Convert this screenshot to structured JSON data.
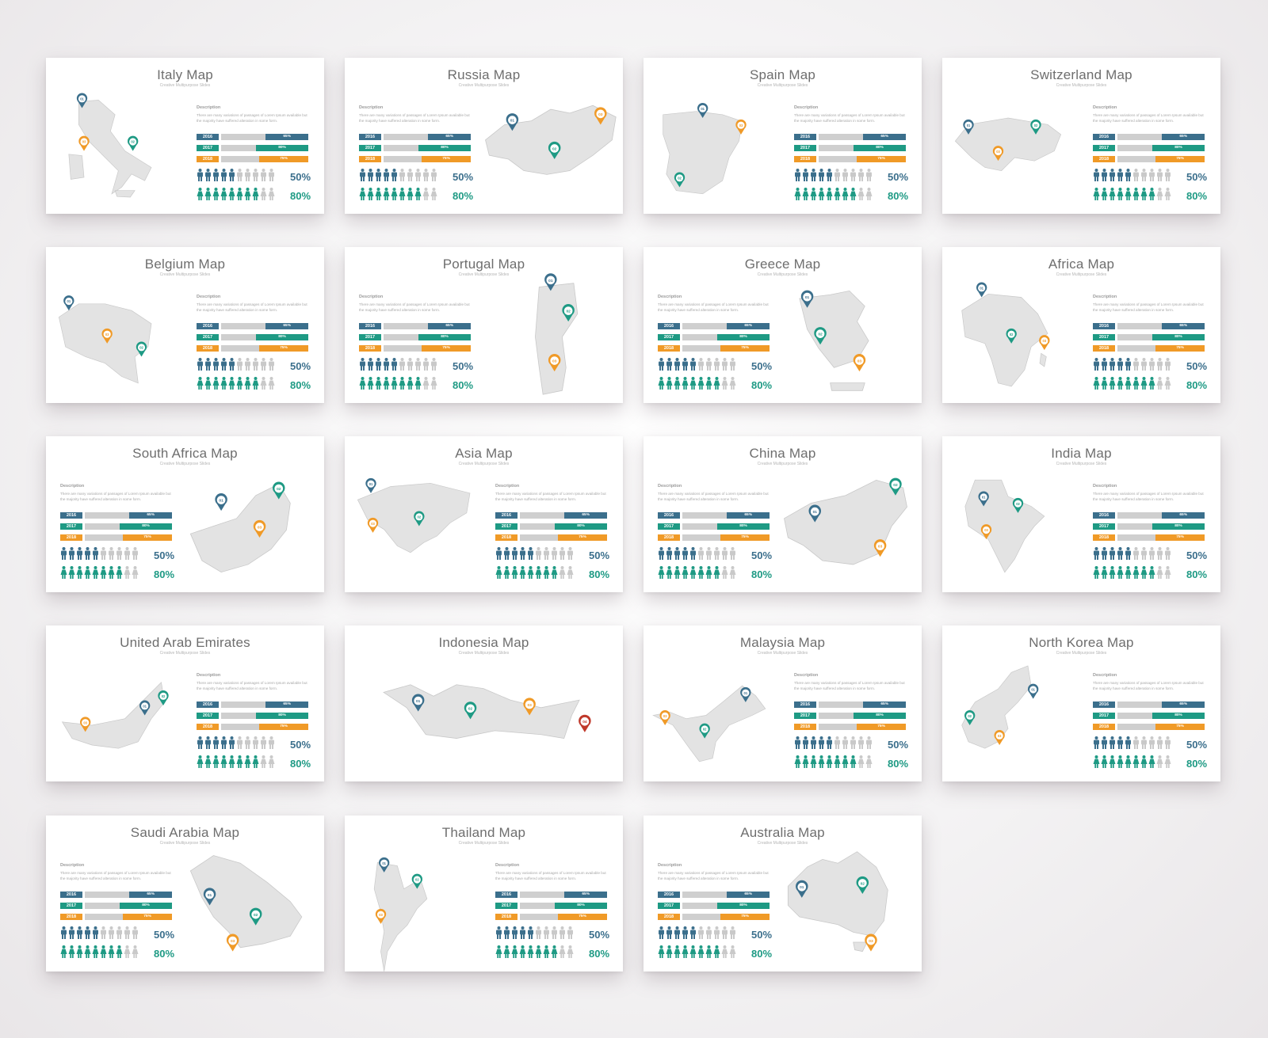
{
  "subtitle": "Creative Multipurpose Slides",
  "description_title": "Description",
  "description_text": "There are many variations of passages of Lorem Ipsum available but the majority have suffered alteration in some form.",
  "bars": [
    {
      "year": "2016",
      "label": "65%",
      "value": 0.65,
      "color": "#3b6f8c"
    },
    {
      "year": "2017",
      "label": "80%",
      "value": 0.8,
      "color": "#1e9a84"
    },
    {
      "year": "2018",
      "label": "75%",
      "value": 0.75,
      "color": "#f09a27"
    }
  ],
  "people_rows": [
    {
      "figure": "man-icon",
      "filled": 5,
      "total": 10,
      "label": "50%",
      "color": "#3b6f8c"
    },
    {
      "figure": "woman-icon",
      "filled": 8,
      "total": 10,
      "label": "80%",
      "color": "#1e9a84"
    }
  ],
  "colors": {
    "blue": "#3b6f8c",
    "green": "#1e9a84",
    "orange": "#f09a27",
    "red": "#c0392b",
    "map_fill": "#e3e3e3",
    "map_stroke": "#ffffff",
    "track": "#cfcfcf"
  },
  "slides": [
    {
      "title": "Italy Map",
      "layout": "map-left",
      "map": "italy-map"
    },
    {
      "title": "Russia Map",
      "layout": "map-right",
      "map": "russia-map"
    },
    {
      "title": "Spain Map",
      "layout": "map-left",
      "map": "spain-map"
    },
    {
      "title": "Switzerland Map",
      "layout": "map-left",
      "map": "switzerland-map"
    },
    {
      "title": "Belgium Map",
      "layout": "map-left",
      "map": "belgium-map"
    },
    {
      "title": "Portugal Map",
      "layout": "map-right",
      "map": "portugal-map"
    },
    {
      "title": "Greece Map",
      "layout": "map-right",
      "map": "greece-map"
    },
    {
      "title": "Africa Map",
      "layout": "map-left",
      "map": "africa-map"
    },
    {
      "title": "South Africa Map",
      "layout": "map-right",
      "map": "south-africa-map"
    },
    {
      "title": "Asia Map",
      "layout": "map-left",
      "map": "asia-map"
    },
    {
      "title": "China Map",
      "layout": "map-right",
      "map": "china-map"
    },
    {
      "title": "India Map",
      "layout": "map-left",
      "map": "india-map"
    },
    {
      "title": "United Arab Emirates",
      "layout": "map-left",
      "map": "uae-map"
    },
    {
      "title": "Indonesia Map",
      "layout": "map-only",
      "map": "indonesia-map"
    },
    {
      "title": "Malaysia Map",
      "layout": "map-left",
      "map": "malaysia-map"
    },
    {
      "title": "North Korea Map",
      "layout": "map-left",
      "map": "north-korea-map"
    },
    {
      "title": "Saudi Arabia Map",
      "layout": "map-right",
      "map": "saudi-arabia-map"
    },
    {
      "title": "Thailand Map",
      "layout": "map-left",
      "map": "thailand-map"
    },
    {
      "title": "Australia Map",
      "layout": "map-right",
      "map": "australia-map"
    }
  ],
  "pin_labels": [
    "01",
    "02",
    "03",
    "04"
  ]
}
